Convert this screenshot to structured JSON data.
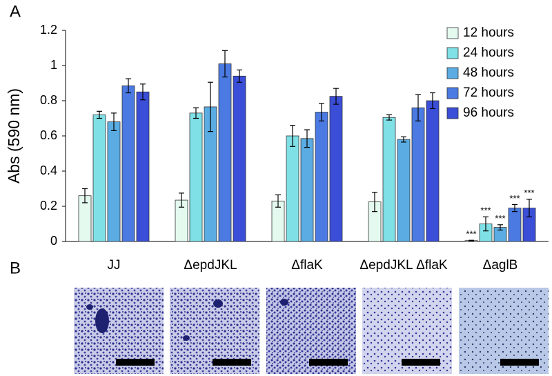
{
  "panel_labels": [
    "A",
    "B"
  ],
  "chart_data": {
    "type": "bar",
    "y_label": "Abs (590 nm)",
    "categories": [
      "JJ",
      "ΔepdJKL",
      "ΔflaK",
      "ΔepdJKL ΔflaK",
      "ΔaglB"
    ],
    "series": [
      {
        "name": "12 hours",
        "color": "#e4faef",
        "values": [
          0.26,
          0.235,
          0.23,
          0.225,
          0.005
        ],
        "errors": [
          0.04,
          0.04,
          0.035,
          0.055,
          0.002
        ],
        "annotations": [
          null,
          null,
          null,
          null,
          "***"
        ]
      },
      {
        "name": "24 hours",
        "color": "#7fe0e6",
        "values": [
          0.72,
          0.73,
          0.6,
          0.705,
          0.1
        ],
        "errors": [
          0.02,
          0.03,
          0.06,
          0.015,
          0.04
        ],
        "annotations": [
          null,
          null,
          null,
          null,
          "***"
        ]
      },
      {
        "name": "48 hours",
        "color": "#5aace2",
        "values": [
          0.68,
          0.765,
          0.585,
          0.58,
          0.08
        ],
        "errors": [
          0.05,
          0.14,
          0.05,
          0.015,
          0.015
        ],
        "annotations": [
          null,
          null,
          null,
          null,
          "***"
        ]
      },
      {
        "name": "72 hours",
        "color": "#4a7ae2",
        "values": [
          0.885,
          1.01,
          0.735,
          0.76,
          0.19
        ],
        "errors": [
          0.04,
          0.075,
          0.05,
          0.075,
          0.02
        ],
        "annotations": [
          null,
          null,
          null,
          null,
          "***"
        ]
      },
      {
        "name": "96 hours",
        "color": "#3a4ed8",
        "values": [
          0.85,
          0.94,
          0.825,
          0.8,
          0.19
        ],
        "errors": [
          0.045,
          0.035,
          0.045,
          0.045,
          0.05
        ],
        "annotations": [
          null,
          null,
          null,
          null,
          "***"
        ]
      }
    ],
    "ylim": [
      0,
      1.2
    ],
    "yticks": [
      0,
      0.2,
      0.4,
      0.6,
      0.8,
      1,
      1.2
    ],
    "grid": false,
    "legend": "top-right"
  }
}
